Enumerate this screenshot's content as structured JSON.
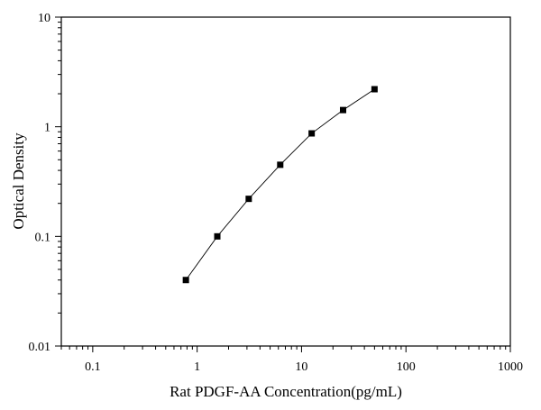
{
  "chart_data": {
    "type": "scatter",
    "xlabel": "Rat PDGF-AA Concentration(pg/mL)",
    "ylabel": "Optical Density",
    "xscale": "log",
    "yscale": "log",
    "xlim": [
      0.05,
      1000
    ],
    "ylim": [
      0.01,
      10
    ],
    "x_tick_labels": [
      "0.1",
      "1",
      "10",
      "100",
      "1000"
    ],
    "y_tick_labels": [
      "0.01",
      "0.1",
      "1",
      "10"
    ],
    "grid": false,
    "legend": "none",
    "series": [
      {
        "x": [
          0.78,
          1.56,
          3.12,
          6.25,
          12.5,
          25,
          50
        ],
        "y": [
          0.04,
          0.1,
          0.22,
          0.45,
          0.87,
          1.42,
          2.2
        ],
        "marker": "square",
        "connected": true,
        "color": "#000000"
      }
    ]
  }
}
